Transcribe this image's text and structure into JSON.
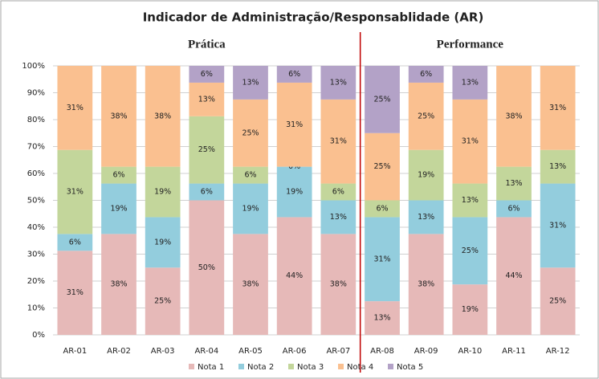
{
  "chart_data": {
    "type": "stacked_bar",
    "title": "Indicador de Administração/Responsablidade (AR)",
    "groups": [
      {
        "label": "Prática",
        "categories": [
          0,
          6
        ]
      },
      {
        "label": "Performance",
        "categories": [
          7,
          11
        ]
      }
    ],
    "categories": [
      "AR-01",
      "AR-02",
      "AR-03",
      "AR-04",
      "AR-05",
      "AR-06",
      "AR-07",
      "AR-08",
      "AR-09",
      "AR-10",
      "AR-11",
      "AR-12"
    ],
    "series": [
      {
        "name": "Nota 1",
        "color": "#e6b9b8",
        "values": [
          31.25,
          37.5,
          25,
          50,
          37.5,
          43.75,
          37.5,
          12.5,
          37.5,
          18.75,
          43.75,
          25
        ],
        "value_labels": [
          "31%",
          "38%",
          "25%",
          "50%",
          "38%",
          "44%",
          "38%",
          "13%",
          "38%",
          "19%",
          "44%",
          "25%"
        ]
      },
      {
        "name": "Nota 2",
        "color": "#93cddd",
        "values": [
          6.25,
          18.75,
          18.75,
          6.25,
          18.75,
          18.75,
          12.5,
          31.25,
          12.5,
          25,
          6.25,
          31.25
        ],
        "value_labels": [
          "6%",
          "19%",
          "19%",
          "6%",
          "19%",
          "19%",
          "13%",
          "31%",
          "13%",
          "25%",
          "6%",
          "31%"
        ]
      },
      {
        "name": "Nota 3",
        "color": "#c3d69b",
        "values": [
          31.25,
          6.25,
          18.75,
          25,
          6.25,
          0,
          6.25,
          6.25,
          18.75,
          12.5,
          12.5,
          12.5
        ],
        "value_labels": [
          "31%",
          "6%",
          "19%",
          "25%",
          "6%",
          "0%",
          "6%",
          "6%",
          "19%",
          "13%",
          "13%",
          "13%"
        ]
      },
      {
        "name": "Nota 4",
        "color": "#fac090",
        "values": [
          31.25,
          37.5,
          37.5,
          12.5,
          25,
          31.25,
          31.25,
          25,
          25,
          31.25,
          37.5,
          31.25
        ],
        "value_labels": [
          "31%",
          "38%",
          "38%",
          "13%",
          "25%",
          "31%",
          "31%",
          "25%",
          "25%",
          "31%",
          "38%",
          "31%"
        ]
      },
      {
        "name": "Nota 5",
        "color": "#b3a2c7",
        "values": [
          0,
          0,
          0,
          6.25,
          12.5,
          6.25,
          12.5,
          25,
          6.25,
          12.5,
          0,
          0
        ],
        "value_labels": [
          null,
          null,
          null,
          "6%",
          "13%",
          "6%",
          "13%",
          "25%",
          "6%",
          "13%",
          null,
          null
        ]
      }
    ],
    "ylim": [
      0,
      100
    ],
    "yticks": [
      {
        "value": 0,
        "label": "0%"
      },
      {
        "value": 10,
        "label": "10%"
      },
      {
        "value": 20,
        "label": "20%"
      },
      {
        "value": 30,
        "label": "30%"
      },
      {
        "value": 40,
        "label": "40%"
      },
      {
        "value": 50,
        "label": "50%"
      },
      {
        "value": 60,
        "label": "60%"
      },
      {
        "value": 70,
        "label": "70%"
      },
      {
        "value": 80,
        "label": "80%"
      },
      {
        "value": 90,
        "label": "90%"
      },
      {
        "value": 100,
        "label": "100%"
      }
    ],
    "grid": true,
    "legend": "bottom"
  }
}
